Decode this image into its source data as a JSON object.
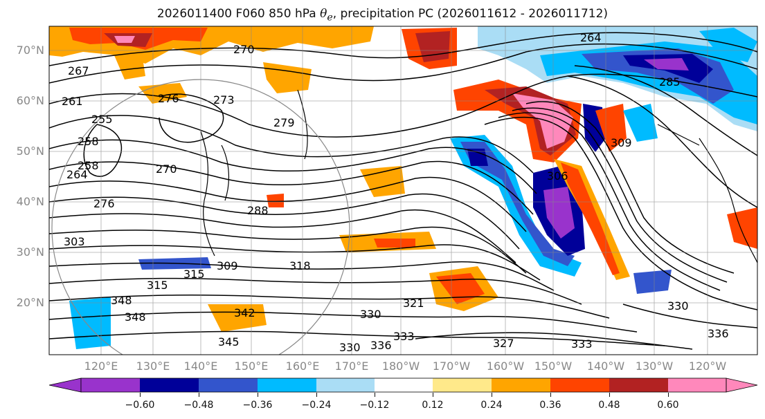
{
  "title": {
    "prefix": "2026011400 F060 850 hPa ",
    "symbol": "θ",
    "subscript": "e",
    "suffix": ", precipitation PC (2026011612 - 2026011712)"
  },
  "lat_labels": [
    "70°N",
    "60°N",
    "50°N",
    "40°N",
    "30°N",
    "20°N"
  ],
  "lon_labels": [
    "120°E",
    "130°E",
    "140°E",
    "150°E",
    "160°E",
    "170°E",
    "180°W",
    "170°W",
    "160°W",
    "150°W",
    "140°W",
    "130°W",
    "120°W"
  ],
  "colorbar": {
    "ticks": [
      "−0.60",
      "−0.48",
      "−0.36",
      "−0.24",
      "−0.12",
      "0.12",
      "0.24",
      "0.36",
      "0.48",
      "0.60"
    ],
    "bins": [
      {
        "range": "< -0.60",
        "color": "#9933cc"
      },
      {
        "range": "-0.60 to -0.48",
        "color": "#000099"
      },
      {
        "range": "-0.48 to -0.36",
        "color": "#3355cc"
      },
      {
        "range": "-0.36 to -0.24",
        "color": "#00bbff"
      },
      {
        "range": "-0.24 to -0.12",
        "color": "#aaddf5"
      },
      {
        "range": "-0.12 to 0.12",
        "color": "#ffffff"
      },
      {
        "range": "0.12 to 0.24",
        "color": "#ffe98a"
      },
      {
        "range": "0.24 to 0.36",
        "color": "#ffa500"
      },
      {
        "range": "0.36 to 0.48",
        "color": "#ff4400"
      },
      {
        "range": "0.48 to 0.60",
        "color": "#b22222"
      },
      {
        "range": "> 0.60",
        "color": "#ff88bb"
      }
    ]
  },
  "contour_labels": [
    "264",
    "267",
    "270",
    "276",
    "273",
    "261",
    "255",
    "258",
    "264",
    "258",
    "270",
    "279",
    "276",
    "288",
    "303",
    "309",
    "315",
    "318",
    "321",
    "330",
    "330",
    "333",
    "336",
    "333",
    "327",
    "330",
    "336",
    "306",
    "309",
    "285",
    "348",
    "315",
    "342",
    "345",
    "348"
  ],
  "chart_data": {
    "type": "map",
    "fields": [
      "850 hPa θe contours",
      "precipitation PC shading"
    ],
    "contour_values": [
      255,
      258,
      261,
      264,
      267,
      270,
      273,
      276,
      279,
      285,
      288,
      303,
      306,
      309,
      315,
      318,
      321,
      327,
      330,
      333,
      336,
      342,
      345,
      348
    ],
    "colorbar_boundaries": [
      -0.6,
      -0.48,
      -0.36,
      -0.24,
      -0.12,
      0.12,
      0.24,
      0.36,
      0.48,
      0.6
    ],
    "lat_range": [
      "~10°N",
      "~75°N"
    ],
    "lon_range": [
      "~113°E",
      "~113°W"
    ]
  }
}
